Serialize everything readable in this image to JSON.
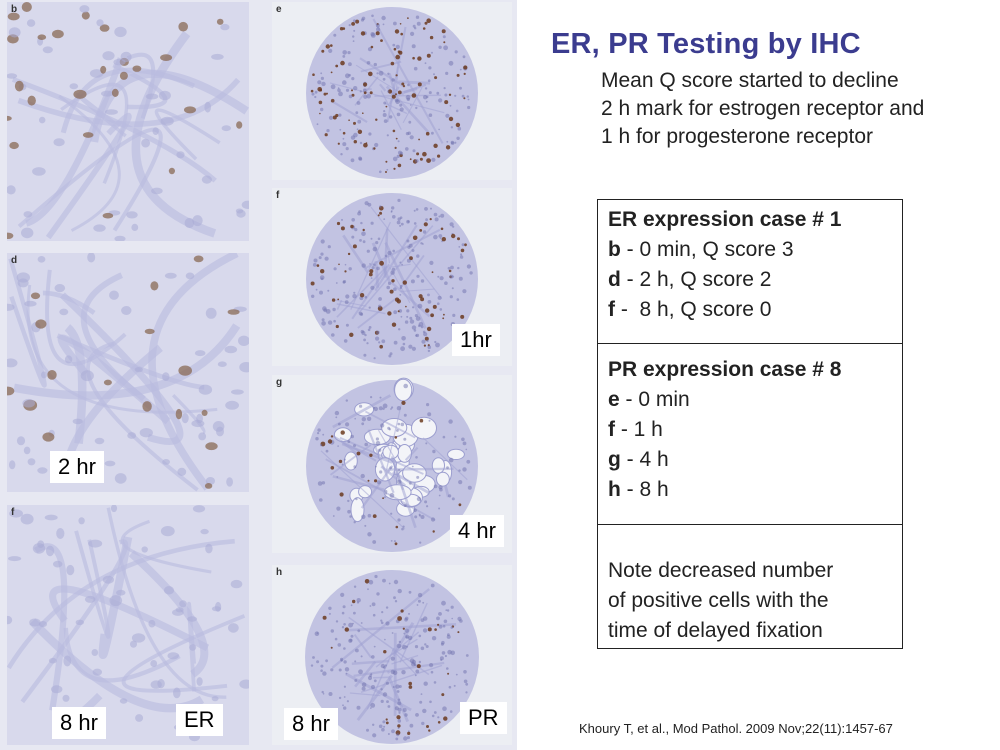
{
  "title": "ER, PR Testing by IHC",
  "subtitle_lines": [
    "Mean Q score started to decline",
    "2 h mark for estrogen receptor and",
    "1 h for progesterone receptor"
  ],
  "er_section": {
    "heading": "ER expression case # 1",
    "items": [
      {
        "key": "b",
        "text": " - 0 min, Q score 3"
      },
      {
        "key": "d",
        "text": " - 2 h, Q score 2"
      },
      {
        "key": "f",
        "text": " -  8 h, Q score 0"
      }
    ]
  },
  "pr_section": {
    "heading": "PR expression case # 8",
    "items": [
      {
        "key": "e",
        "text": " - 0 min"
      },
      {
        "key": "f",
        "text": " - 1 h"
      },
      {
        "key": "g",
        "text": " - 4 h"
      },
      {
        "key": "h",
        "text": " - 8 h"
      }
    ]
  },
  "note_lines": [
    "Note decreased number",
    "of positive cells with the",
    "time of delayed fixation"
  ],
  "reference": "Khoury T, et al., Mod Pathol. 2009 Nov;22(11):1457-67",
  "panels": {
    "b": {
      "letter": "b"
    },
    "d": {
      "letter": "d",
      "tag": "2 hr"
    },
    "f_left": {
      "letter": "f",
      "tag": "8 hr",
      "tag2": "ER"
    },
    "e": {
      "letter": "e"
    },
    "f_right": {
      "letter": "f",
      "tag": "1hr"
    },
    "g": {
      "letter": "g",
      "tag": "4 hr"
    },
    "h": {
      "letter": "h",
      "tag": "8 hr",
      "tag2": "PR"
    }
  },
  "colors": {
    "title": "#3b3c8f",
    "tissue": "#c5c6e4",
    "stain_brown": "#6b3a1e",
    "nuclei_blue": "#8a8cc4"
  }
}
